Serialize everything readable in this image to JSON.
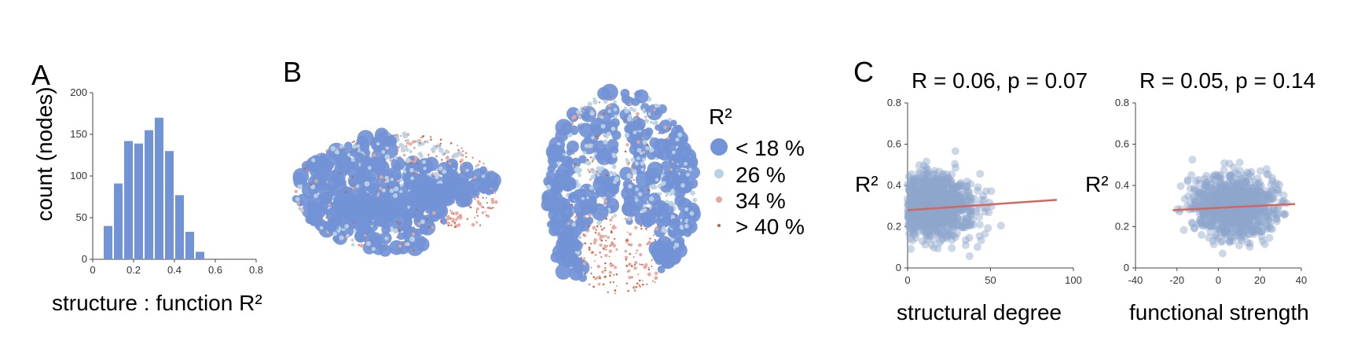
{
  "panels": {
    "a": {
      "label": "A"
    },
    "b": {
      "label": "B"
    },
    "c": {
      "label": "C"
    }
  },
  "colors": {
    "blue": "#7293d6",
    "light_blue": "#bcd2e3",
    "pink": "#e5a89c",
    "red": "#cc5a3f",
    "fit_line": "#d4665e",
    "scatter": "#8fa6cc"
  },
  "chart_data": [
    {
      "type": "bar",
      "panel": "A",
      "xlabel": "structure : function R²",
      "ylabel": "count (nodes)",
      "x_ticks": [
        "0",
        "0.2",
        "0.4",
        "0.6",
        "0.8"
      ],
      "y_ticks": [
        "0",
        "50",
        "100",
        "150",
        "200"
      ],
      "xlim": [
        0,
        0.8
      ],
      "ylim": [
        0,
        200
      ],
      "bin_centers": [
        0.075,
        0.125,
        0.175,
        0.225,
        0.275,
        0.325,
        0.375,
        0.425,
        0.475,
        0.525,
        0.575
      ],
      "bin_width": 0.05,
      "values": [
        40,
        91,
        142,
        139,
        155,
        170,
        130,
        77,
        33,
        9,
        0
      ]
    },
    {
      "type": "scatter",
      "panel": "B",
      "description_views": [
        "sagittal",
        "axial"
      ],
      "legend_title": "R²",
      "legend": [
        {
          "label": "< 18 %",
          "class": "lt18"
        },
        {
          "label": "26 %",
          "class": "26"
        },
        {
          "label": "34 %",
          "class": "34"
        },
        {
          "label": "> 40 %",
          "class": "gt40"
        }
      ]
    },
    {
      "type": "scatter",
      "panel": "C1",
      "stat": "R = 0.06, p = 0.07",
      "xlabel": "structural degree",
      "ylabel": "R²",
      "x_ticks": [
        "0",
        "50",
        "100"
      ],
      "y_ticks": [
        "0",
        "0.2",
        "0.4",
        "0.6",
        "0.8"
      ],
      "xlim": [
        0,
        100
      ],
      "ylim": [
        0,
        0.8
      ],
      "fit_line": {
        "x": [
          0,
          90
        ],
        "y": [
          0.28,
          0.33
        ]
      }
    },
    {
      "type": "scatter",
      "panel": "C2",
      "stat": "R = 0.05, p = 0.14",
      "xlabel": "functional strength",
      "ylabel": "R²",
      "x_ticks": [
        "-40",
        "-20",
        "0",
        "20",
        "40"
      ],
      "y_ticks": [
        "0",
        "0.2",
        "0.4",
        "0.6",
        "0.8"
      ],
      "xlim": [
        -40,
        40
      ],
      "ylim": [
        0,
        0.8
      ],
      "fit_line": {
        "x": [
          -22,
          37
        ],
        "y": [
          0.28,
          0.31
        ]
      }
    }
  ]
}
